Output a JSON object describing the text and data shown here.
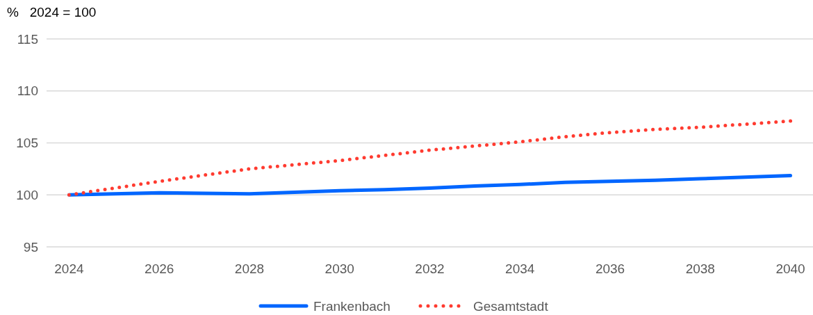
{
  "chart_data": {
    "type": "line",
    "ylabel": "%   2024 = 100",
    "categories": [
      "2024",
      null,
      "2026",
      null,
      "2028",
      null,
      "2030",
      null,
      "2032",
      null,
      "2034",
      null,
      "2036",
      null,
      "2038",
      null,
      "2040"
    ],
    "series": [
      {
        "name": "Frankenbach",
        "color": "#0066ff",
        "line_style": "solid",
        "values": [
          100,
          100.1,
          100.2,
          100.15,
          100.1,
          100.25,
          100.4,
          100.5,
          100.65,
          100.85,
          101.0,
          101.2,
          101.3,
          101.4,
          101.55,
          101.7,
          101.85
        ]
      },
      {
        "name": "Gesamtstadt",
        "color": "#ff3b30",
        "line_style": "dotted",
        "values": [
          100,
          100.65,
          101.3,
          101.9,
          102.5,
          102.9,
          103.3,
          103.8,
          104.3,
          104.7,
          105.1,
          105.6,
          106.0,
          106.3,
          106.5,
          106.8,
          107.1
        ]
      }
    ],
    "ylim": [
      95,
      115
    ],
    "yticks": [
      95,
      100,
      105,
      110,
      115
    ],
    "grid": "y",
    "legend": "bottom"
  }
}
